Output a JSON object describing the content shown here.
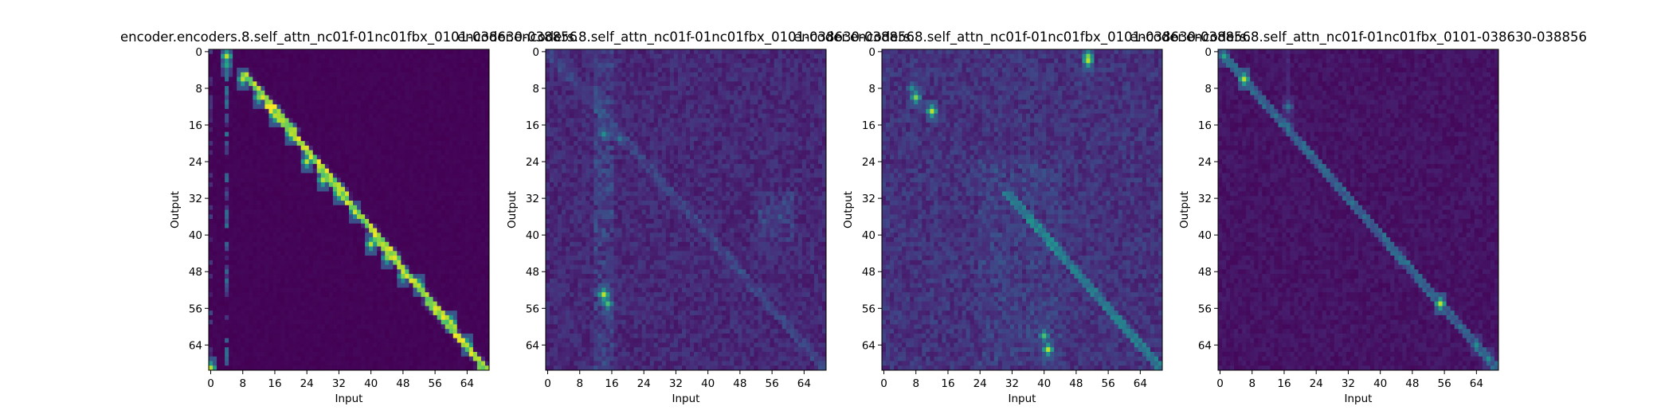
{
  "chart_data": [
    {
      "type": "heatmap",
      "title": "encoder.encoders.8.self_attn_nc01f-01nc01fbx_0101-038630-038856",
      "xlabel": "Input",
      "ylabel": "Output",
      "x_ticks": [
        0,
        8,
        16,
        24,
        32,
        40,
        48,
        56,
        64
      ],
      "y_ticks": [
        0,
        8,
        16,
        24,
        32,
        40,
        48,
        56,
        64
      ],
      "size": 70,
      "colormap": "viridis",
      "value_range": [
        0,
        1
      ],
      "pattern": "sharp diagonal with bright column near input 4",
      "hotspots": [
        {
          "x": 4,
          "y": 1,
          "v": 0.9
        },
        {
          "x": 4,
          "y": 3,
          "v": 0.6
        },
        {
          "x": 8,
          "y": 6,
          "v": 0.9
        },
        {
          "x": 12,
          "y": 10,
          "v": 0.8
        },
        {
          "x": 16,
          "y": 14,
          "v": 0.9
        },
        {
          "x": 20,
          "y": 18,
          "v": 0.9
        },
        {
          "x": 24,
          "y": 24,
          "v": 0.9
        },
        {
          "x": 28,
          "y": 28,
          "v": 0.9
        },
        {
          "x": 32,
          "y": 31,
          "v": 0.9
        },
        {
          "x": 36,
          "y": 35,
          "v": 0.8
        },
        {
          "x": 40,
          "y": 42,
          "v": 0.9
        },
        {
          "x": 44,
          "y": 45,
          "v": 0.8
        },
        {
          "x": 48,
          "y": 49,
          "v": 0.8
        },
        {
          "x": 52,
          "y": 51,
          "v": 0.9
        },
        {
          "x": 60,
          "y": 59,
          "v": 0.9
        },
        {
          "x": 64,
          "y": 64,
          "v": 0.9
        },
        {
          "x": 0,
          "y": 69,
          "v": 0.9
        }
      ]
    },
    {
      "type": "heatmap",
      "title": "encoder.encoders.8.self_attn_nc01f-01nc01fbx_0101-038630-038856",
      "xlabel": "Input",
      "ylabel": "Output",
      "x_ticks": [
        0,
        8,
        16,
        24,
        32,
        40,
        48,
        56,
        64
      ],
      "y_ticks": [
        0,
        8,
        16,
        24,
        32,
        40,
        48,
        56,
        64
      ],
      "size": 70,
      "colormap": "viridis",
      "value_range": [
        0,
        1
      ],
      "pattern": "diffuse with faint diagonal",
      "hotspots": [
        {
          "x": 14,
          "y": 53,
          "v": 0.9
        },
        {
          "x": 15,
          "y": 55,
          "v": 0.7
        },
        {
          "x": 14,
          "y": 18,
          "v": 0.5
        },
        {
          "x": 18,
          "y": 19,
          "v": 0.4
        },
        {
          "x": 58,
          "y": 36,
          "v": 0.3
        },
        {
          "x": 48,
          "y": 48,
          "v": 0.3
        }
      ]
    },
    {
      "type": "heatmap",
      "title": "encoder.encoders.8.self_attn_nc01f-01nc01fbx_0101-038630-038856",
      "xlabel": "Input",
      "ylabel": "Output",
      "x_ticks": [
        0,
        8,
        16,
        24,
        32,
        40,
        48,
        56,
        64
      ],
      "y_ticks": [
        0,
        8,
        16,
        24,
        32,
        40,
        48,
        56,
        64
      ],
      "size": 70,
      "colormap": "viridis",
      "value_range": [
        0,
        1
      ],
      "pattern": "diffuse with diagonal in lower half",
      "hotspots": [
        {
          "x": 51,
          "y": 2,
          "v": 0.9
        },
        {
          "x": 51,
          "y": 1,
          "v": 0.8
        },
        {
          "x": 8,
          "y": 10,
          "v": 0.8
        },
        {
          "x": 12,
          "y": 13,
          "v": 0.9
        },
        {
          "x": 7,
          "y": 8,
          "v": 0.5
        },
        {
          "x": 41,
          "y": 65,
          "v": 0.9
        },
        {
          "x": 40,
          "y": 62,
          "v": 0.7
        },
        {
          "x": 28,
          "y": 26,
          "v": 0.3
        }
      ]
    },
    {
      "type": "heatmap",
      "title": "encoder.encoders.8.self_attn_nc01f-01nc01fbx_0101-038630-038856",
      "xlabel": "Input",
      "ylabel": "Output",
      "x_ticks": [
        0,
        8,
        16,
        24,
        32,
        40,
        48,
        56,
        64
      ],
      "y_ticks": [
        0,
        8,
        16,
        24,
        32,
        40,
        48,
        56,
        64
      ],
      "size": 70,
      "colormap": "viridis",
      "value_range": [
        0,
        1
      ],
      "pattern": "dark with faint diagonal",
      "hotspots": [
        {
          "x": 1,
          "y": 1,
          "v": 0.6
        },
        {
          "x": 6,
          "y": 6,
          "v": 0.9
        },
        {
          "x": 17,
          "y": 12,
          "v": 0.4
        },
        {
          "x": 17,
          "y": 16,
          "v": 0.3
        },
        {
          "x": 45,
          "y": 45,
          "v": 0.4
        },
        {
          "x": 55,
          "y": 55,
          "v": 0.9
        },
        {
          "x": 64,
          "y": 64,
          "v": 0.5
        },
        {
          "x": 67,
          "y": 67,
          "v": 0.5
        }
      ]
    }
  ]
}
